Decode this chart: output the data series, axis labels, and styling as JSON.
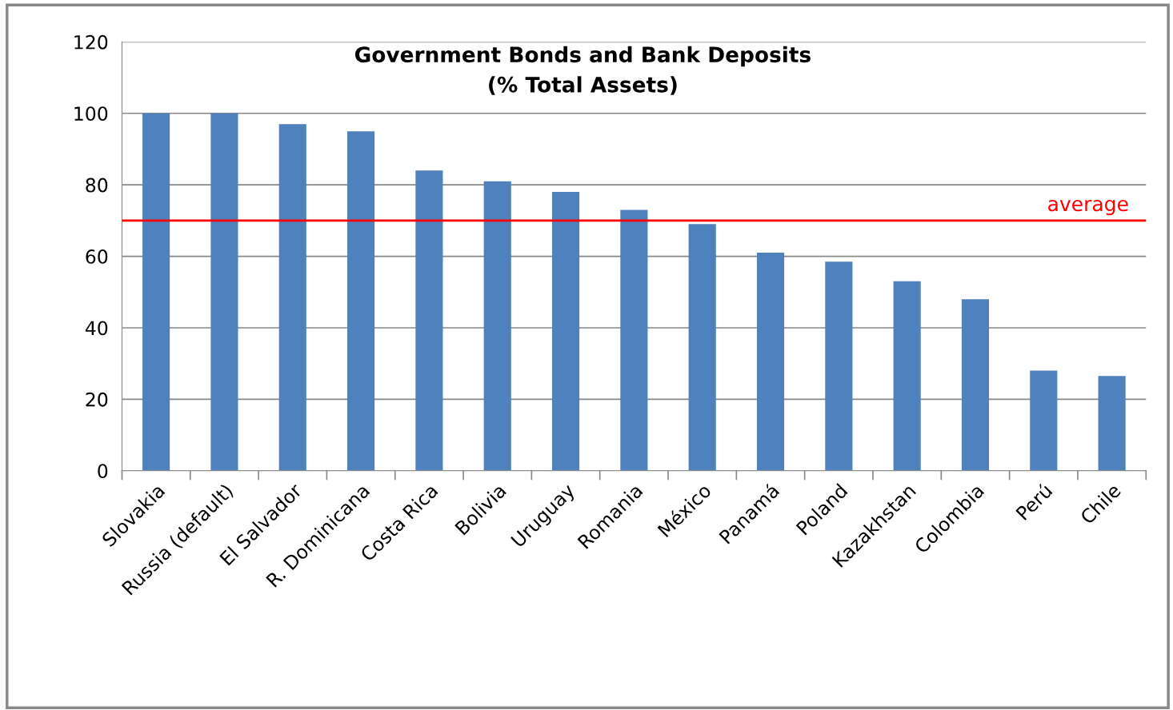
{
  "chart_data": {
    "type": "bar",
    "title": "Government Bonds and Bank Deposits\n(% Total Assets)",
    "categories": [
      "Slovakia",
      "Russia (default)",
      "El Salvador",
      "R. Dominicana",
      "Costa Rica",
      "Bolivia",
      "Uruguay",
      "Romania",
      "México",
      "Panamá",
      "Poland",
      "Kazakhstan",
      "Colombia",
      "Perú",
      "Chile"
    ],
    "values": [
      100,
      100,
      97,
      95,
      84,
      81,
      78,
      73,
      69,
      61,
      58.5,
      53,
      48,
      28,
      26.5
    ],
    "color": "#4f81bd",
    "ylim": [
      0,
      120
    ],
    "yticks": [
      0,
      20,
      40,
      60,
      80,
      100,
      120
    ],
    "grid": "y",
    "ref_lines": [
      {
        "axis": "y",
        "value": 70,
        "label": "average",
        "color": "#ff0000"
      }
    ]
  }
}
